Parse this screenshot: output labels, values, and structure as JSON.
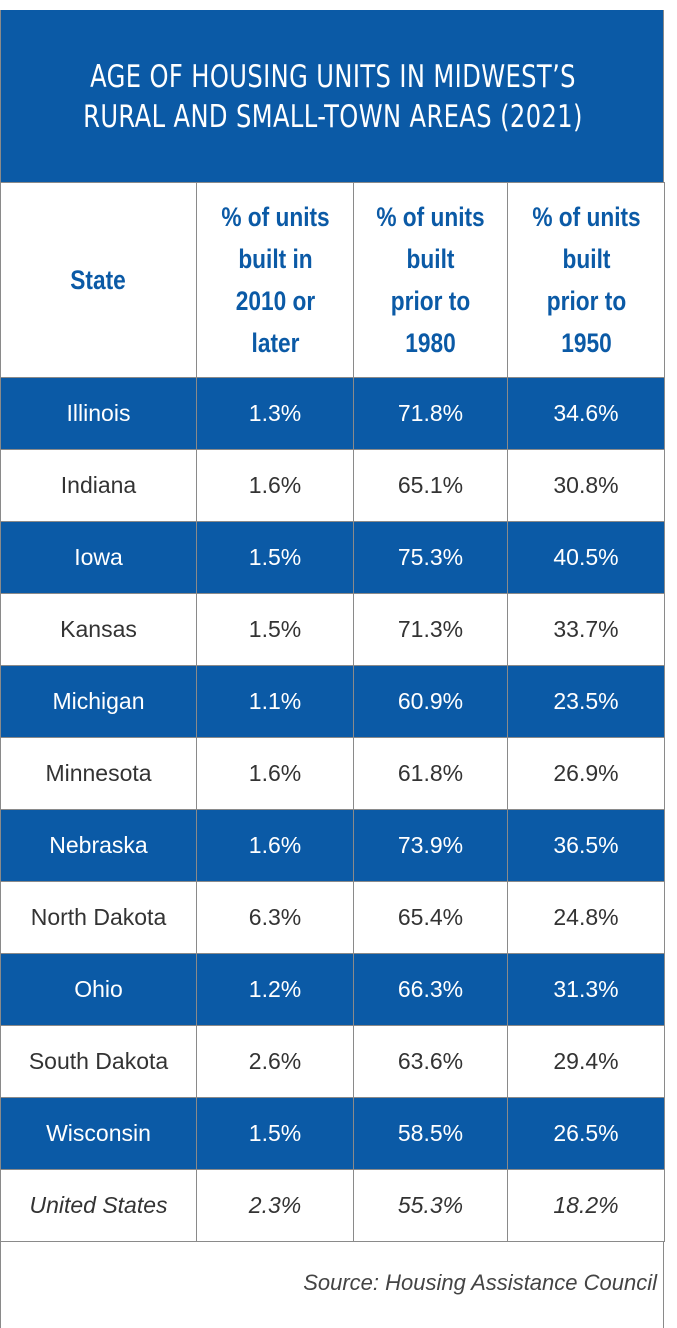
{
  "chart_data": {
    "type": "table",
    "title_lines": [
      "AGE OF HOUSING UNITS IN MIDWEST’S",
      "RURAL AND SMALL-TOWN AREAS (2021)"
    ],
    "columns": [
      "State",
      "% of units built in 2010 or later",
      "% of units built prior to 1980",
      "% of units built prior to 1950"
    ],
    "rows": [
      {
        "state": "Illinois",
        "built_2010_or_later": "1.3%",
        "prior_1980": "71.8%",
        "prior_1950": "34.6%"
      },
      {
        "state": "Indiana",
        "built_2010_or_later": "1.6%",
        "prior_1980": "65.1%",
        "prior_1950": "30.8%"
      },
      {
        "state": "Iowa",
        "built_2010_or_later": "1.5%",
        "prior_1980": "75.3%",
        "prior_1950": "40.5%"
      },
      {
        "state": "Kansas",
        "built_2010_or_later": "1.5%",
        "prior_1980": "71.3%",
        "prior_1950": "33.7%"
      },
      {
        "state": "Michigan",
        "built_2010_or_later": "1.1%",
        "prior_1980": "60.9%",
        "prior_1950": "23.5%"
      },
      {
        "state": "Minnesota",
        "built_2010_or_later": "1.6%",
        "prior_1980": "61.8%",
        "prior_1950": "26.9%"
      },
      {
        "state": "Nebraska",
        "built_2010_or_later": "1.6%",
        "prior_1980": "73.9%",
        "prior_1950": "36.5%"
      },
      {
        "state": "North Dakota",
        "built_2010_or_later": "6.3%",
        "prior_1980": "65.4%",
        "prior_1950": "24.8%"
      },
      {
        "state": "Ohio",
        "built_2010_or_later": "1.2%",
        "prior_1980": "66.3%",
        "prior_1950": "31.3%"
      },
      {
        "state": "South Dakota",
        "built_2010_or_later": "2.6%",
        "prior_1980": "63.6%",
        "prior_1950": "29.4%"
      },
      {
        "state": "Wisconsin",
        "built_2010_or_later": "1.5%",
        "prior_1980": "58.5%",
        "prior_1950": "26.5%"
      },
      {
        "state": "United States",
        "built_2010_or_later": "2.3%",
        "prior_1980": "55.3%",
        "prior_1950": "18.2%"
      }
    ],
    "source": "Source: Housing Assistance Council"
  },
  "header": {
    "state": "State",
    "col2": [
      "% of units",
      "built in",
      "2010 or",
      "later"
    ],
    "col3": [
      "% of units",
      "built",
      "prior to",
      "1980"
    ],
    "col4": [
      "% of units",
      "built",
      "prior to",
      "1950"
    ]
  },
  "colors": {
    "brand_blue": "#0b5aa6",
    "border": "#8a8a8a",
    "text": "#333333"
  }
}
